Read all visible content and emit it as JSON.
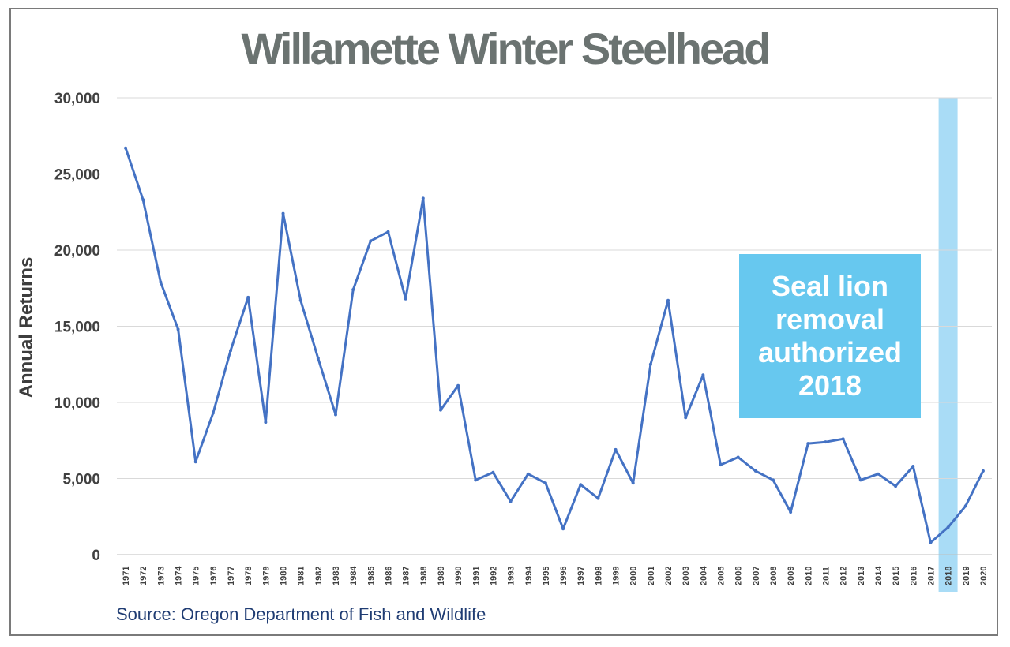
{
  "title": "Willamette Winter Steelhead",
  "ylabel": "Annual Returns",
  "source": "Source: Oregon Department of Fish and Wildlife",
  "annotation": "Seal lion\nremoval\nauthorized\n2018",
  "colors": {
    "line": "#4472c4",
    "highlight": "#a9dcf6",
    "callout": "#67c8ef",
    "title": "#6b7371",
    "source": "#1f3c73"
  },
  "chart_data": {
    "type": "line",
    "title": "Willamette Winter Steelhead",
    "xlabel": "",
    "ylabel": "Annual Returns",
    "ylim": [
      0,
      30000
    ],
    "yticks": [
      "0",
      "5,000",
      "10,000",
      "15,000",
      "20,000",
      "25,000",
      "30,000"
    ],
    "grid": true,
    "highlight_category": "2018",
    "categories": [
      "1971",
      "1972",
      "1973",
      "1974",
      "1975",
      "1976",
      "1977",
      "1978",
      "1979",
      "1980",
      "1981",
      "1982",
      "1983",
      "1984",
      "1985",
      "1986",
      "1987",
      "1988",
      "1989",
      "1990",
      "1991",
      "1992",
      "1993",
      "1994",
      "1995",
      "1996",
      "1997",
      "1998",
      "1999",
      "2000",
      "2001",
      "2002",
      "2003",
      "2004",
      "2005",
      "2006",
      "2007",
      "2008",
      "2009",
      "2010",
      "2011",
      "2012",
      "2013",
      "2014",
      "2015",
      "2016",
      "2017",
      "2018",
      "2019",
      "2020"
    ],
    "values": [
      26700,
      23300,
      17900,
      14800,
      6100,
      9300,
      13400,
      16900,
      8700,
      22400,
      16700,
      12900,
      9200,
      17400,
      20600,
      21200,
      16800,
      23400,
      9500,
      11100,
      4900,
      5400,
      3500,
      5300,
      4700,
      1700,
      4600,
      3700,
      6900,
      4700,
      12500,
      16700,
      9000,
      11800,
      5900,
      6400,
      5500,
      4900,
      2800,
      7300,
      7400,
      7600,
      4900,
      5300,
      4500,
      5800,
      800,
      1800,
      3200,
      5500
    ]
  }
}
